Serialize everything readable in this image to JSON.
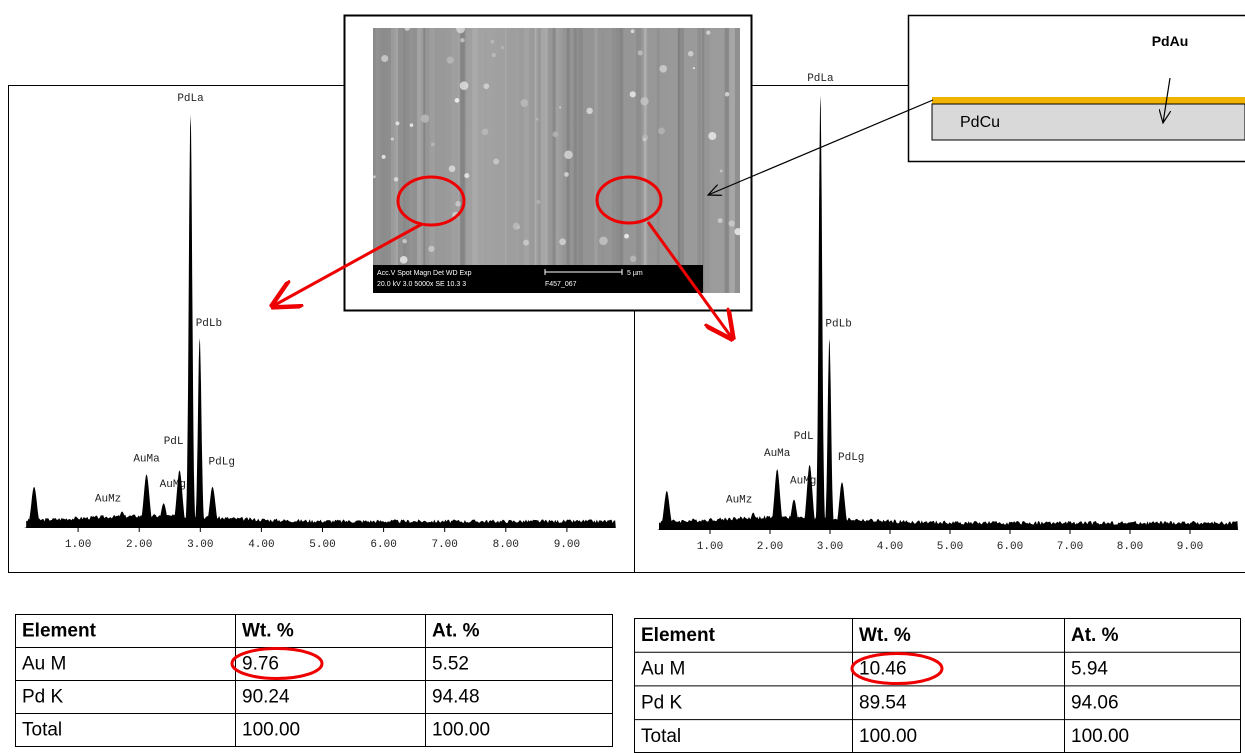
{
  "sem_image": {
    "caption_line1": "Acc.V  Spot Magn   Det  WD  Exp",
    "caption_line2": "20.0 kV 3.0  5000x   SE  10.3  3",
    "image_id": "F457_067",
    "scale_bar": "5 µm"
  },
  "schematic": {
    "top_layer": "PdAu",
    "substrate": "PdCu"
  },
  "spectra": [
    {
      "type": "spectrum",
      "xlim": [
        0,
        10
      ],
      "ylim": [
        0,
        100
      ],
      "xticks": [
        {
          "value": 1,
          "label": "1.00"
        },
        {
          "value": 2,
          "label": "2.00"
        },
        {
          "value": 3,
          "label": "3.00"
        },
        {
          "value": 4,
          "label": "4.00"
        },
        {
          "value": 5,
          "label": "5.00"
        },
        {
          "value": 6,
          "label": "6.00"
        },
        {
          "value": 7,
          "label": "7.00"
        },
        {
          "value": 8,
          "label": "8.00"
        },
        {
          "value": 9,
          "label": "9.00"
        }
      ],
      "peaks": [
        {
          "x": 0.28,
          "height": 10
        },
        {
          "label": "AuMz",
          "x": 1.72,
          "height": 4
        },
        {
          "label": "AuMa",
          "x": 2.12,
          "height": 13
        },
        {
          "label": "AuMg",
          "x": 2.4,
          "height": 6
        },
        {
          "label": "PdL",
          "x": 2.66,
          "height": 14
        },
        {
          "label": "PdLa",
          "x": 2.84,
          "height": 100
        },
        {
          "label": "PdLb",
          "x": 2.99,
          "height": 46
        },
        {
          "label": "PdLg",
          "x": 3.2,
          "height": 10
        }
      ]
    },
    {
      "type": "spectrum",
      "xlim": [
        0,
        10
      ],
      "ylim": [
        0,
        100
      ],
      "xticks": [
        {
          "value": 1,
          "label": "1.00"
        },
        {
          "value": 2,
          "label": "2.00"
        },
        {
          "value": 3,
          "label": "3.00"
        },
        {
          "value": 4,
          "label": "4.00"
        },
        {
          "value": 5,
          "label": "5.00"
        },
        {
          "value": 6,
          "label": "6.00"
        },
        {
          "value": 7,
          "label": "7.00"
        },
        {
          "value": 8,
          "label": "8.00"
        },
        {
          "value": 9,
          "label": "9.00"
        }
      ],
      "peaks": [
        {
          "x": 0.28,
          "height": 9
        },
        {
          "label": "AuMz",
          "x": 1.72,
          "height": 4
        },
        {
          "label": "AuMa",
          "x": 2.12,
          "height": 14
        },
        {
          "label": "AuMg",
          "x": 2.4,
          "height": 7
        },
        {
          "label": "PdL",
          "x": 2.66,
          "height": 15
        },
        {
          "label": "PdLa",
          "x": 2.84,
          "height": 100
        },
        {
          "label": "PdLb",
          "x": 2.99,
          "height": 44
        },
        {
          "label": "PdLg",
          "x": 3.2,
          "height": 11
        }
      ]
    }
  ],
  "tables": [
    {
      "header": [
        "Element",
        "Wt. %",
        "At. %"
      ],
      "rows": [
        [
          "Au M",
          "9.76",
          "5.52"
        ],
        [
          "Pd K",
          "90.24",
          "94.48"
        ],
        [
          "Total",
          "100.00",
          "100.00"
        ]
      ]
    },
    {
      "header": [
        "Element",
        "Wt. %",
        "At. %"
      ],
      "rows": [
        [
          "Au M",
          "10.46",
          "5.94"
        ],
        [
          "Pd K",
          "89.54",
          "94.06"
        ],
        [
          "Total",
          "100.00",
          "100.00"
        ]
      ]
    }
  ]
}
